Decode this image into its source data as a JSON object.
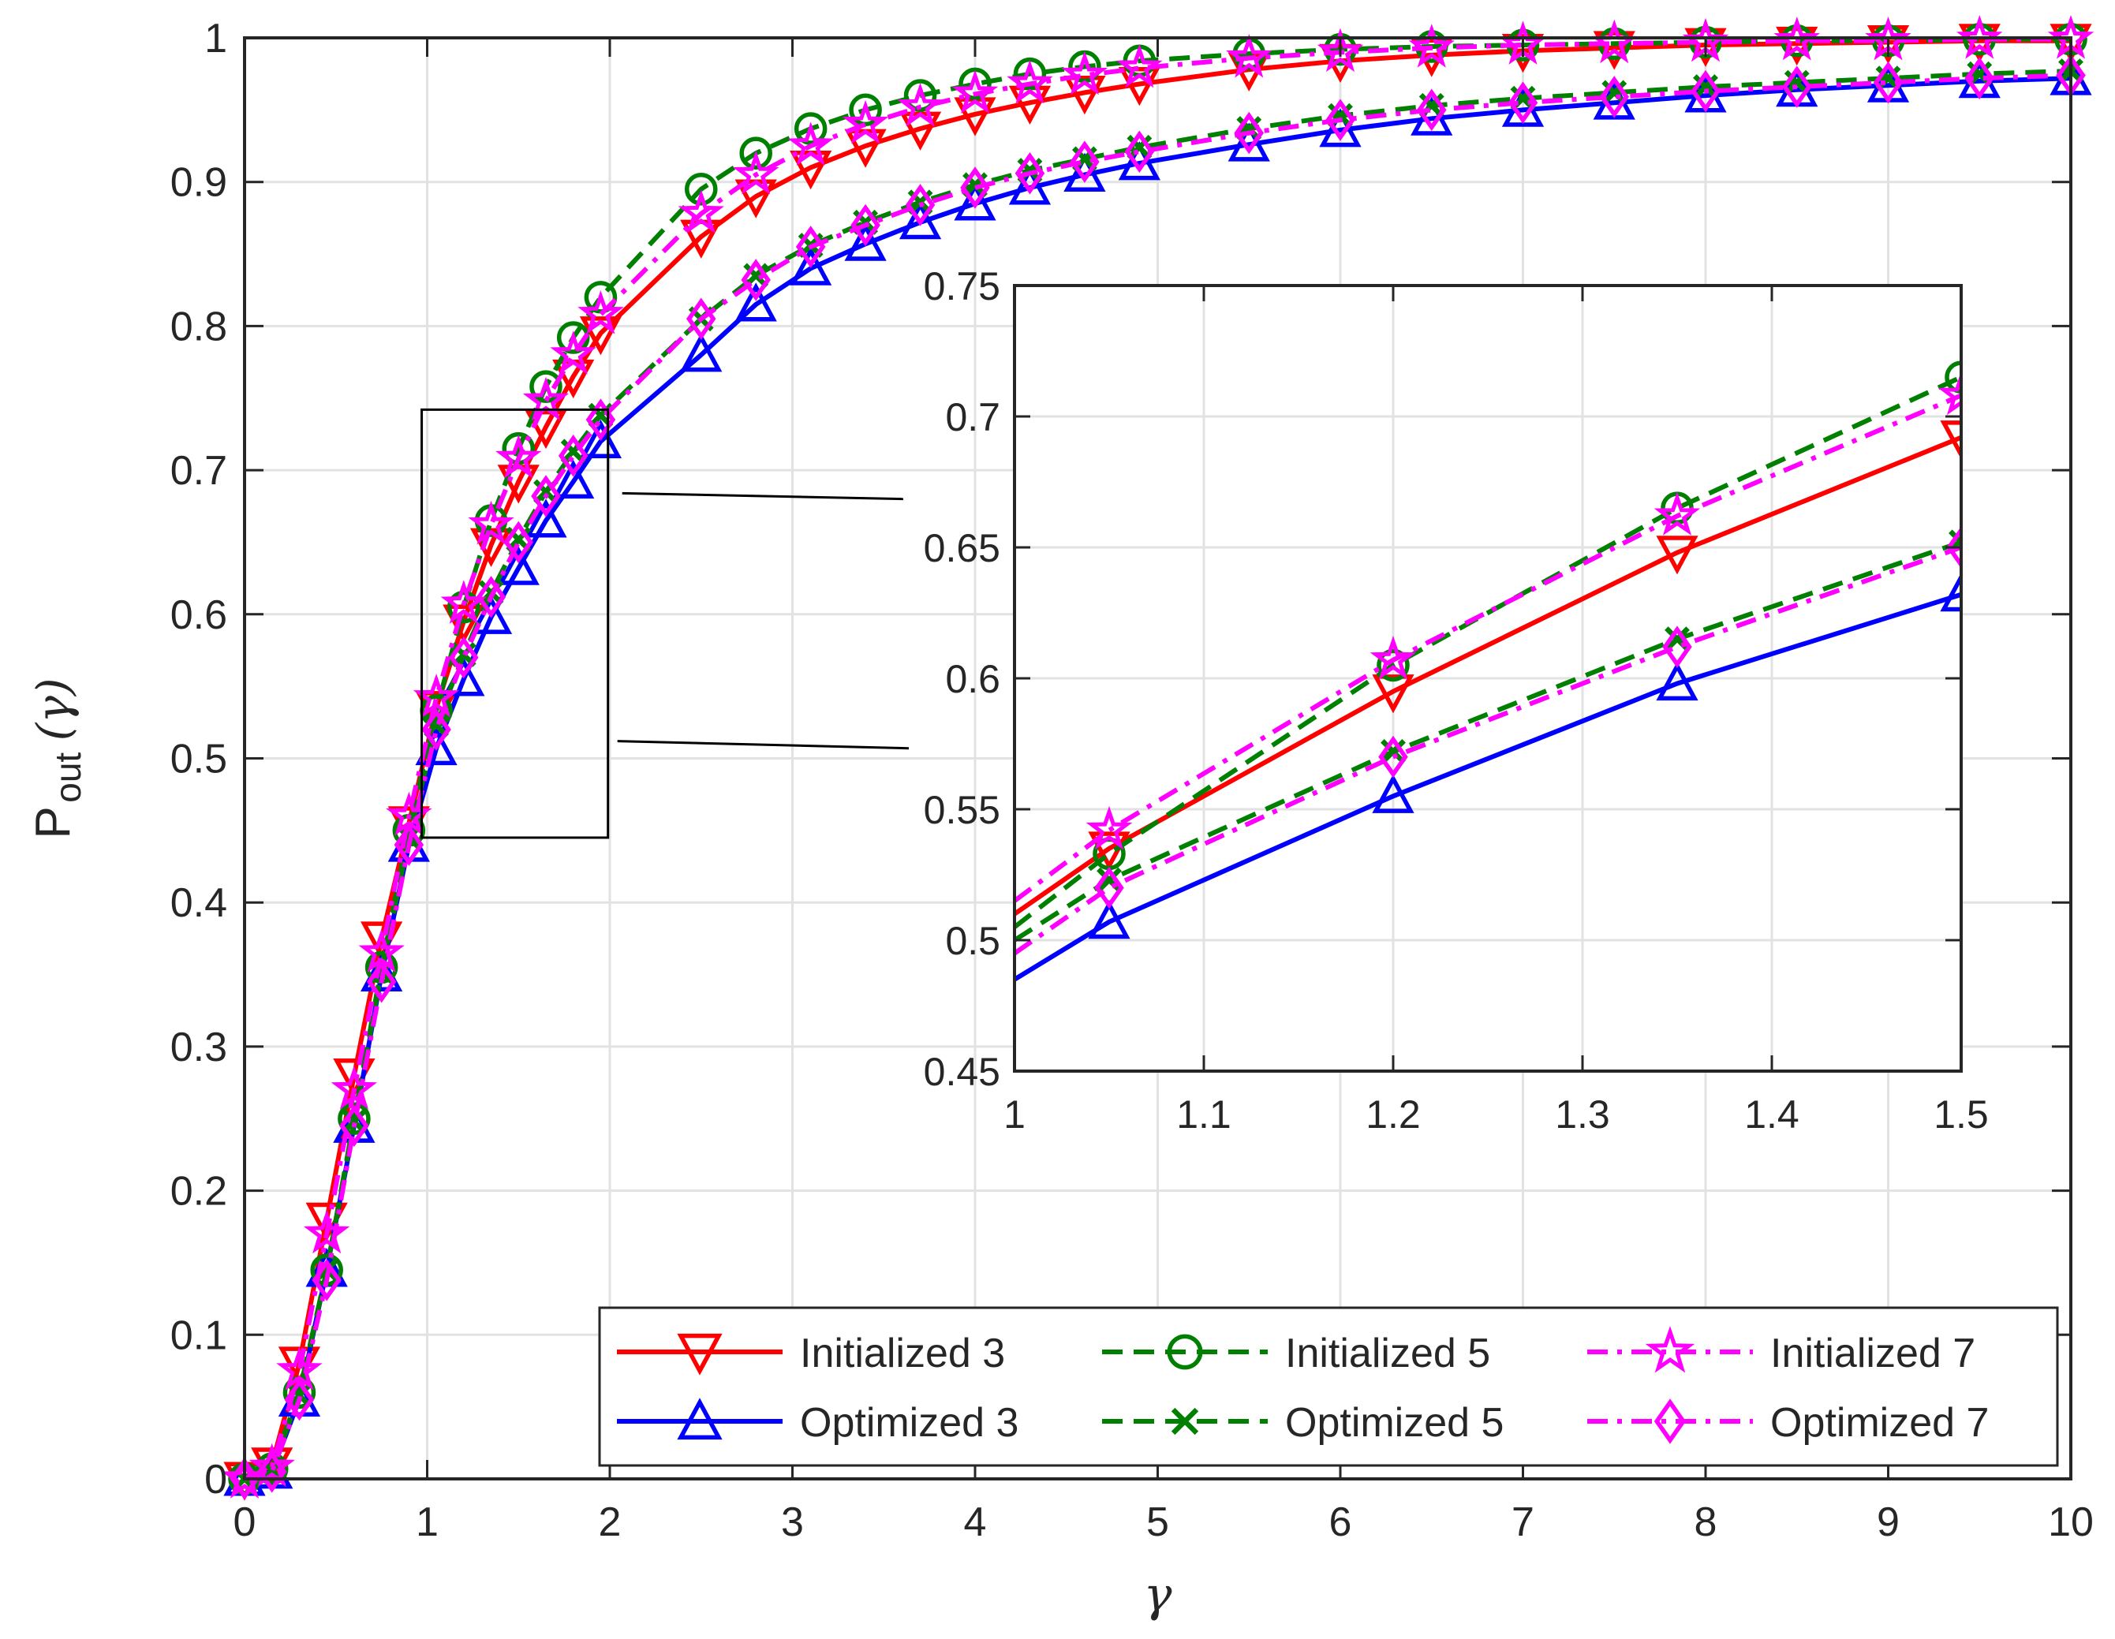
{
  "chart_data": {
    "type": "line",
    "xlabel": "γ",
    "ylabel_main": "P",
    "ylabel_sub": "out",
    "ylabel_arg": "(γ)",
    "xlim": [
      0,
      10
    ],
    "ylim": [
      0,
      1
    ],
    "xticks": [
      0,
      1,
      2,
      3,
      4,
      5,
      6,
      7,
      8,
      9,
      10
    ],
    "yticks": [
      0,
      0.1,
      0.2,
      0.3,
      0.4,
      0.5,
      0.6,
      0.7,
      0.8,
      0.9,
      1
    ],
    "ytick_labels": [
      "0",
      "0.1",
      "0.2",
      "0.3",
      "0.4",
      "0.5",
      "0.6",
      "0.7",
      "0.8",
      "0.9",
      "1"
    ],
    "grid": true,
    "legend_position": "bottom-right",
    "legend_columns": 3,
    "series": [
      {
        "name": "Initialized 3",
        "color": "#ff0000",
        "line_style": "solid",
        "marker": "triangle-down",
        "x": [
          0,
          0.15,
          0.3,
          0.45,
          0.6,
          0.75,
          0.9,
          1.05,
          1.2,
          1.35,
          1.5,
          1.65,
          1.8,
          1.95,
          2.5,
          2.8,
          3.1,
          3.4,
          3.7,
          4.0,
          4.3,
          4.6,
          4.9,
          5.5,
          6.0,
          6.5,
          7.0,
          7.5,
          8.0,
          8.5,
          9.0,
          9.5,
          10.0
        ],
        "y": [
          0.0,
          0.01,
          0.08,
          0.18,
          0.28,
          0.375,
          0.455,
          0.535,
          0.595,
          0.648,
          0.692,
          0.73,
          0.765,
          0.795,
          0.862,
          0.89,
          0.91,
          0.925,
          0.937,
          0.947,
          0.955,
          0.962,
          0.968,
          0.978,
          0.984,
          0.988,
          0.991,
          0.993,
          0.995,
          0.996,
          0.997,
          0.998,
          0.998
        ]
      },
      {
        "name": "Optimized 3",
        "color": "#0000ff",
        "line_style": "solid",
        "marker": "triangle-up",
        "x": [
          0,
          0.15,
          0.3,
          0.45,
          0.6,
          0.75,
          0.9,
          1.05,
          1.2,
          1.35,
          1.5,
          1.65,
          1.8,
          1.95,
          2.5,
          2.8,
          3.1,
          3.4,
          3.7,
          4.0,
          4.3,
          4.6,
          4.9,
          5.5,
          6.0,
          6.5,
          7.0,
          7.5,
          8.0,
          8.5,
          9.0,
          9.5,
          10.0
        ],
        "y": [
          0.0,
          0.005,
          0.055,
          0.145,
          0.245,
          0.35,
          0.44,
          0.507,
          0.555,
          0.598,
          0.632,
          0.665,
          0.692,
          0.72,
          0.78,
          0.815,
          0.84,
          0.857,
          0.872,
          0.885,
          0.896,
          0.905,
          0.913,
          0.926,
          0.936,
          0.944,
          0.95,
          0.955,
          0.96,
          0.964,
          0.967,
          0.97,
          0.972
        ]
      },
      {
        "name": "Initialized 5",
        "color": "#008000",
        "line_style": "dashed",
        "marker": "circle",
        "x": [
          0,
          0.15,
          0.3,
          0.45,
          0.6,
          0.75,
          0.9,
          1.05,
          1.2,
          1.35,
          1.5,
          1.65,
          1.8,
          1.95,
          2.5,
          2.8,
          3.1,
          3.4,
          3.7,
          4.0,
          4.3,
          4.6,
          4.9,
          5.5,
          6.0,
          6.5,
          7.0,
          7.5,
          8.0,
          8.5,
          9.0,
          9.5,
          10.0
        ],
        "y": [
          0.0,
          0.007,
          0.06,
          0.145,
          0.25,
          0.355,
          0.45,
          0.533,
          0.605,
          0.665,
          0.715,
          0.758,
          0.792,
          0.82,
          0.895,
          0.92,
          0.937,
          0.95,
          0.96,
          0.968,
          0.975,
          0.98,
          0.984,
          0.989,
          0.992,
          0.994,
          0.995,
          0.996,
          0.997,
          0.998,
          0.998,
          0.999,
          0.999
        ]
      },
      {
        "name": "Optimized 5",
        "color": "#008000",
        "line_style": "dashed",
        "marker": "x",
        "x": [
          0,
          0.15,
          0.3,
          0.45,
          0.6,
          0.75,
          0.9,
          1.05,
          1.2,
          1.35,
          1.5,
          1.65,
          1.8,
          1.95,
          2.5,
          2.8,
          3.1,
          3.4,
          3.7,
          4.0,
          4.3,
          4.6,
          4.9,
          5.5,
          6.0,
          6.5,
          7.0,
          7.5,
          8.0,
          8.5,
          9.0,
          9.5,
          10.0
        ],
        "y": [
          0.0,
          0.006,
          0.058,
          0.145,
          0.248,
          0.352,
          0.445,
          0.523,
          0.572,
          0.615,
          0.652,
          0.685,
          0.713,
          0.738,
          0.805,
          0.835,
          0.856,
          0.872,
          0.886,
          0.898,
          0.908,
          0.916,
          0.924,
          0.937,
          0.946,
          0.953,
          0.958,
          0.962,
          0.966,
          0.969,
          0.972,
          0.975,
          0.977
        ]
      },
      {
        "name": "Initialized 7",
        "color": "#ff00ff",
        "line_style": "dashdot",
        "marker": "pentagram",
        "x": [
          0,
          0.15,
          0.3,
          0.45,
          0.6,
          0.75,
          0.9,
          1.05,
          1.2,
          1.35,
          1.5,
          1.65,
          1.8,
          1.95,
          2.5,
          2.8,
          3.1,
          3.4,
          3.7,
          4.0,
          4.3,
          4.6,
          4.9,
          5.5,
          6.0,
          6.5,
          7.0,
          7.5,
          8.0,
          8.5,
          9.0,
          9.5,
          10.0
        ],
        "y": [
          0.0,
          0.008,
          0.075,
          0.17,
          0.27,
          0.365,
          0.46,
          0.542,
          0.607,
          0.662,
          0.708,
          0.748,
          0.78,
          0.808,
          0.878,
          0.905,
          0.925,
          0.94,
          0.952,
          0.961,
          0.968,
          0.974,
          0.979,
          0.986,
          0.99,
          0.993,
          0.995,
          0.996,
          0.997,
          0.998,
          0.998,
          0.999,
          0.999
        ]
      },
      {
        "name": "Optimized 7",
        "color": "#ff00ff",
        "line_style": "dashdot",
        "marker": "diamond",
        "x": [
          0,
          0.15,
          0.3,
          0.45,
          0.6,
          0.75,
          0.9,
          1.05,
          1.2,
          1.35,
          1.5,
          1.65,
          1.8,
          1.95,
          2.5,
          2.8,
          3.1,
          3.4,
          3.7,
          4.0,
          4.3,
          4.6,
          4.9,
          5.5,
          6.0,
          6.5,
          7.0,
          7.5,
          8.0,
          8.5,
          9.0,
          9.5,
          10.0
        ],
        "y": [
          0.0,
          0.005,
          0.055,
          0.138,
          0.245,
          0.345,
          0.44,
          0.52,
          0.57,
          0.612,
          0.65,
          0.682,
          0.71,
          0.735,
          0.805,
          0.832,
          0.855,
          0.87,
          0.884,
          0.896,
          0.906,
          0.914,
          0.921,
          0.934,
          0.943,
          0.95,
          0.955,
          0.959,
          0.963,
          0.966,
          0.969,
          0.972,
          0.974
        ]
      }
    ],
    "inset": {
      "xlim": [
        1,
        1.5
      ],
      "ylim": [
        0.45,
        0.75
      ],
      "xticks": [
        1,
        1.1,
        1.2,
        1.3,
        1.4,
        1.5
      ],
      "xtick_labels": [
        "1",
        "1.1",
        "1.2",
        "1.3",
        "1.4",
        "1.5"
      ],
      "yticks": [
        0.45,
        0.5,
        0.55,
        0.6,
        0.65,
        0.7,
        0.75
      ],
      "ytick_labels": [
        "0.45",
        "0.5",
        "0.55",
        "0.6",
        "0.65",
        "0.7",
        "0.75"
      ],
      "zoom_region": {
        "x": [
          0.97,
          1.99
        ],
        "y": [
          0.445,
          0.742
        ]
      },
      "series": [
        {
          "name": "Initialized 3",
          "x": [
            1.0,
            1.05,
            1.2,
            1.35,
            1.5
          ],
          "y": [
            0.51,
            0.535,
            0.595,
            0.648,
            0.692
          ]
        },
        {
          "name": "Optimized 3",
          "x": [
            1.0,
            1.05,
            1.2,
            1.35,
            1.5
          ],
          "y": [
            0.485,
            0.507,
            0.555,
            0.598,
            0.632
          ]
        },
        {
          "name": "Initialized 5",
          "x": [
            1.0,
            1.05,
            1.2,
            1.35,
            1.5
          ],
          "y": [
            0.505,
            0.533,
            0.605,
            0.665,
            0.715
          ]
        },
        {
          "name": "Optimized 5",
          "x": [
            1.0,
            1.05,
            1.2,
            1.35,
            1.5
          ],
          "y": [
            0.5,
            0.523,
            0.572,
            0.615,
            0.652
          ]
        },
        {
          "name": "Initialized 7",
          "x": [
            1.0,
            1.05,
            1.2,
            1.35,
            1.5
          ],
          "y": [
            0.515,
            0.542,
            0.607,
            0.662,
            0.708
          ]
        },
        {
          "name": "Optimized 7",
          "x": [
            1.0,
            1.05,
            1.2,
            1.35,
            1.5
          ],
          "y": [
            0.495,
            0.52,
            0.57,
            0.612,
            0.65
          ]
        }
      ]
    }
  }
}
